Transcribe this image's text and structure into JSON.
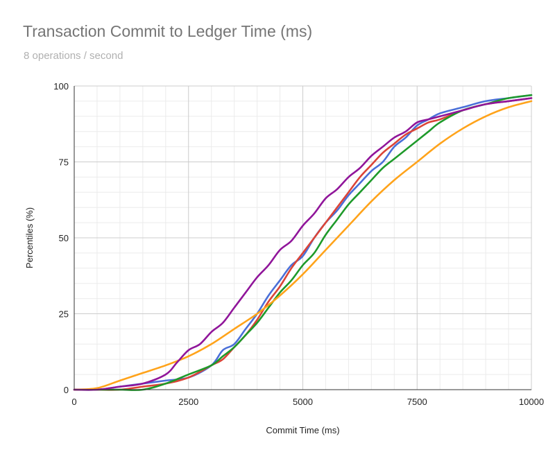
{
  "chart_data": {
    "type": "line",
    "title": "Transaction Commit to Ledger Time (ms)",
    "subtitle": "8 operations / second",
    "xlabel": "Commit Time (ms)",
    "ylabel": "Percentiles (%)",
    "xlim": [
      0,
      10000
    ],
    "ylim": [
      0,
      100
    ],
    "xticks": [
      0,
      2500,
      5000,
      7500,
      10000
    ],
    "xtick_labels": [
      "0",
      "2500",
      "5000",
      "7500",
      "10000"
    ],
    "yticks": [
      0,
      25,
      50,
      75,
      100
    ],
    "ytick_labels": [
      "0",
      "25",
      "50",
      "75",
      "100"
    ],
    "grid": true,
    "legend": "none",
    "series": [
      {
        "name": "blue",
        "color": "#4a6fd8",
        "x": [
          0,
          500,
          1000,
          1500,
          2000,
          2500,
          3000,
          3250,
          3500,
          3750,
          4000,
          4250,
          4500,
          4750,
          5000,
          5250,
          5500,
          5750,
          6000,
          6250,
          6500,
          6750,
          7000,
          7250,
          7500,
          7750,
          8000,
          8500,
          9000,
          9500,
          10000
        ],
        "values": [
          0,
          0,
          1,
          2,
          3,
          4,
          8,
          13,
          15,
          20,
          25,
          31,
          36,
          41,
          44,
          50,
          55,
          59,
          64,
          68,
          72,
          75,
          80,
          83,
          87,
          89,
          91,
          93,
          95,
          96,
          97
        ]
      },
      {
        "name": "red",
        "color": "#db4437",
        "x": [
          0,
          500,
          1000,
          1500,
          2000,
          2500,
          3000,
          3250,
          3500,
          3750,
          4000,
          4250,
          4500,
          4750,
          5000,
          5250,
          5500,
          5750,
          6000,
          6250,
          6500,
          6750,
          7000,
          7250,
          7500,
          7750,
          8000,
          8500,
          9000,
          9500,
          10000
        ],
        "values": [
          0,
          0,
          0,
          1,
          2,
          4,
          8,
          10,
          14,
          18,
          23,
          29,
          34,
          40,
          45,
          50,
          55,
          60,
          65,
          70,
          74,
          78,
          81,
          84,
          86,
          88,
          89,
          92,
          94,
          95,
          96
        ]
      },
      {
        "name": "green",
        "color": "#1e9a2a",
        "x": [
          0,
          500,
          1000,
          1500,
          2000,
          2500,
          3000,
          3250,
          3500,
          3750,
          4000,
          4250,
          4500,
          4750,
          5000,
          5250,
          5500,
          5750,
          6000,
          6250,
          6500,
          6750,
          7000,
          7250,
          7500,
          7750,
          8000,
          8500,
          9000,
          9500,
          10000
        ],
        "values": [
          0,
          0,
          0,
          0,
          2,
          5,
          8,
          11,
          14,
          18,
          22,
          27,
          32,
          36,
          41,
          45,
          51,
          56,
          61,
          65,
          69,
          73,
          76,
          79,
          82,
          85,
          88,
          92,
          94,
          96,
          97
        ]
      },
      {
        "name": "orange",
        "color": "#ffa31a",
        "x": [
          0,
          500,
          1000,
          1500,
          2000,
          2500,
          3000,
          3500,
          4000,
          4500,
          5000,
          5500,
          6000,
          6500,
          7000,
          7500,
          8000,
          8500,
          9000,
          9500,
          10000
        ],
        "values": [
          0,
          0.5,
          3,
          5.5,
          8,
          11,
          15,
          20,
          25,
          31,
          38,
          46,
          54,
          62,
          69,
          75,
          81,
          86,
          90,
          93,
          95
        ]
      },
      {
        "name": "purple",
        "color": "#90159a",
        "x": [
          0,
          500,
          1000,
          1500,
          2000,
          2250,
          2500,
          2750,
          3000,
          3250,
          3500,
          3750,
          4000,
          4250,
          4500,
          4750,
          5000,
          5250,
          5500,
          5750,
          6000,
          6250,
          6500,
          6750,
          7000,
          7250,
          7500,
          7750,
          8000,
          8500,
          9000,
          9500,
          10000
        ],
        "values": [
          0,
          0,
          1,
          2,
          5,
          9,
          13,
          15,
          19,
          22,
          27,
          32,
          37,
          41,
          46,
          49,
          54,
          58,
          63,
          66,
          70,
          73,
          77,
          80,
          83,
          85,
          88,
          89,
          90,
          92,
          94,
          95,
          96
        ]
      }
    ]
  }
}
